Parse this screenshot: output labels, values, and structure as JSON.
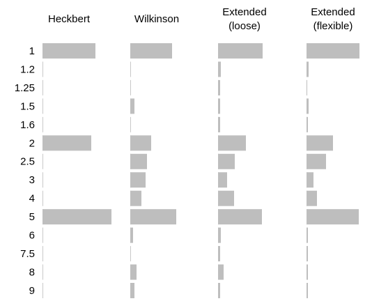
{
  "chart_data": {
    "type": "bar",
    "orientation": "horizontal",
    "categories": [
      "1",
      "1.2",
      "1.25",
      "1.5",
      "1.6",
      "2",
      "2.5",
      "3",
      "4",
      "5",
      "6",
      "7.5",
      "8",
      "9"
    ],
    "xlim": [
      0,
      100
    ],
    "color": "#bebebe",
    "series": [
      {
        "name": "Heckbert",
        "color": "#bebebe",
        "values": [
          76,
          0,
          0,
          0,
          0,
          70,
          0,
          0,
          0,
          99,
          0,
          0,
          0,
          0
        ]
      },
      {
        "name": "Wilkinson",
        "color": "#bebebe",
        "values": [
          60,
          0,
          0,
          6,
          0,
          30,
          24,
          22,
          16,
          66,
          4,
          0,
          9,
          6
        ]
      },
      {
        "name": "Extended (loose)",
        "color": "#bebebe",
        "values": [
          64,
          4,
          3,
          3,
          3,
          40,
          24,
          13,
          23,
          63,
          4,
          3,
          8,
          3
        ]
      },
      {
        "name": "Extended (flexible)",
        "color": "#bebebe",
        "values": [
          76,
          3,
          1,
          3,
          2,
          38,
          28,
          10,
          15,
          75,
          2,
          2,
          2,
          2
        ]
      }
    ]
  }
}
